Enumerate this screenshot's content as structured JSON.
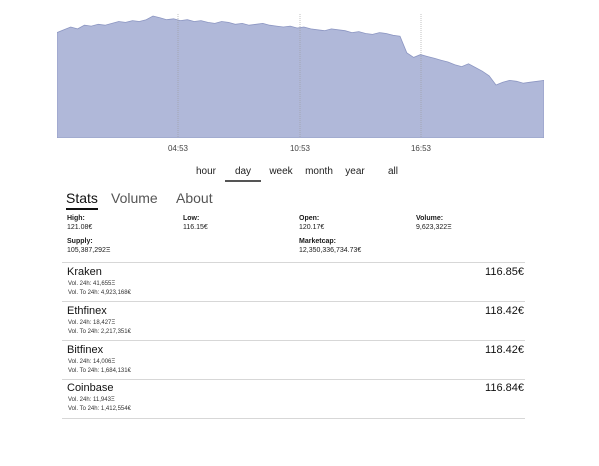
{
  "colors": {
    "chart_fill": "#b0b8d9",
    "chart_line": "#8c96c2",
    "marker_line": "#9a9a9a"
  },
  "chart_data": {
    "type": "area",
    "x_ticks": [
      "04:53",
      "10:53",
      "16:53"
    ],
    "series_shape": [
      0.82,
      0.85,
      0.88,
      0.86,
      0.9,
      0.89,
      0.91,
      0.9,
      0.92,
      0.94,
      0.93,
      0.95,
      0.94,
      0.96,
      1.0,
      0.98,
      0.96,
      0.97,
      0.95,
      0.96,
      0.94,
      0.95,
      0.93,
      0.92,
      0.94,
      0.93,
      0.91,
      0.92,
      0.9,
      0.91,
      0.92,
      0.9,
      0.89,
      0.88,
      0.89,
      0.87,
      0.88,
      0.86,
      0.85,
      0.84,
      0.86,
      0.85,
      0.84,
      0.82,
      0.83,
      0.81,
      0.8,
      0.82,
      0.81,
      0.79,
      0.78,
      0.6,
      0.55,
      0.58,
      0.56,
      0.54,
      0.52,
      0.5,
      0.47,
      0.45,
      0.48,
      0.44,
      0.4,
      0.35,
      0.25,
      0.28,
      0.3,
      0.29,
      0.27,
      0.28,
      0.29,
      0.3
    ]
  },
  "timeframes": {
    "hour": "hour",
    "day": "day",
    "week": "week",
    "month": "month",
    "year": "year",
    "all": "all"
  },
  "tabs": {
    "stats": "Stats",
    "volume": "Volume",
    "about": "About"
  },
  "stats": {
    "high_label": "High:",
    "high_value": "121.08€",
    "low_label": "Low:",
    "low_value": "116.15€",
    "open_label": "Open:",
    "open_value": "120.17€",
    "volume_label": "Volume:",
    "volume_value": "9,623,322Ξ",
    "supply_label": "Supply:",
    "supply_value": "105,387,292Ξ",
    "marketcap_label": "Marketcap:",
    "marketcap_value": "12,350,336,734.73€"
  },
  "exchanges": [
    {
      "name": "Kraken",
      "vol24": "Vol. 24h: 41,655Ξ",
      "volto24": "Vol. To 24h: 4,923,168€",
      "price": "116.85€"
    },
    {
      "name": "Ethfinex",
      "vol24": "Vol. 24h: 18,427Ξ",
      "volto24": "Vol. To 24h: 2,217,351€",
      "price": "118.42€"
    },
    {
      "name": "Bitfinex",
      "vol24": "Vol. 24h: 14,006Ξ",
      "volto24": "Vol. To 24h: 1,684,131€",
      "price": "118.42€"
    },
    {
      "name": "Coinbase",
      "vol24": "Vol. 24h: 11,943Ξ",
      "volto24": "Vol. To 24h: 1,412,554€",
      "price": "116.84€"
    }
  ]
}
